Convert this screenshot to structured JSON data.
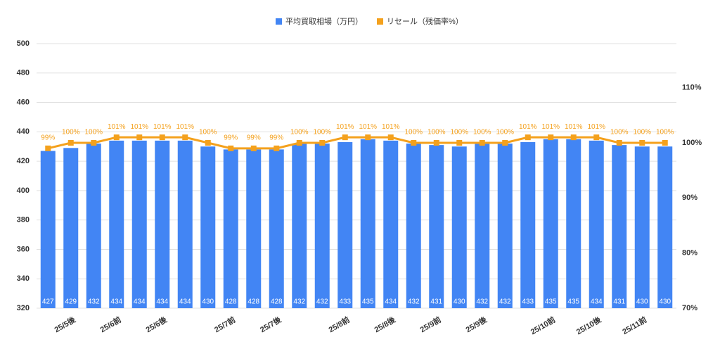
{
  "chart_data": {
    "type": "bar-line",
    "categories": [
      null,
      "25/5後",
      null,
      "25/6前",
      null,
      "25/6後",
      null,
      null,
      "25/7前",
      null,
      "25/7後",
      null,
      null,
      "25/8前",
      null,
      "25/8後",
      null,
      "25/9前",
      null,
      "25/9後",
      null,
      null,
      "25/10前",
      null,
      "25/10後",
      null,
      "25/11前",
      null
    ],
    "series": [
      {
        "name": "平均買取相場（万円）",
        "type": "bar",
        "color": "#4285f4",
        "values": [
          427,
          429,
          432,
          434,
          434,
          434,
          434,
          430,
          428,
          428,
          428,
          432,
          432,
          433,
          435,
          434,
          432,
          431,
          430,
          432,
          432,
          433,
          435,
          435,
          434,
          431,
          430,
          430
        ]
      },
      {
        "name": "リセール（残価率%）",
        "type": "line",
        "axis": "y2",
        "color": "#f4a11d",
        "values": [
          99,
          100,
          100,
          101,
          101,
          101,
          101,
          100,
          99,
          99,
          99,
          100,
          100,
          101,
          101,
          101,
          100,
          100,
          100,
          100,
          100,
          101,
          101,
          101,
          101,
          100,
          100,
          100
        ],
        "value_labels": [
          "99%",
          "100%",
          "100%",
          "101%",
          "101%",
          "101%",
          "101%",
          "100%",
          "99%",
          "99%",
          "99%",
          "100%",
          "100%",
          "101%",
          "101%",
          "101%",
          "100%",
          "100%",
          "100%",
          "100%",
          "100%",
          "101%",
          "101%",
          "101%",
          "101%",
          "100%",
          "100%",
          "100%"
        ]
      }
    ],
    "ylim": [
      320,
      500
    ],
    "yticks": [
      320,
      340,
      360,
      380,
      400,
      420,
      440,
      460,
      480,
      500
    ],
    "y2lim": [
      70,
      118
    ],
    "y2ticks": [
      {
        "value": 70,
        "label": "70%"
      },
      {
        "value": 80,
        "label": "80%"
      },
      {
        "value": 90,
        "label": "90%"
      },
      {
        "value": 100,
        "label": "100%"
      },
      {
        "value": 110,
        "label": "110%"
      }
    ],
    "grid": true,
    "legend": "top"
  }
}
